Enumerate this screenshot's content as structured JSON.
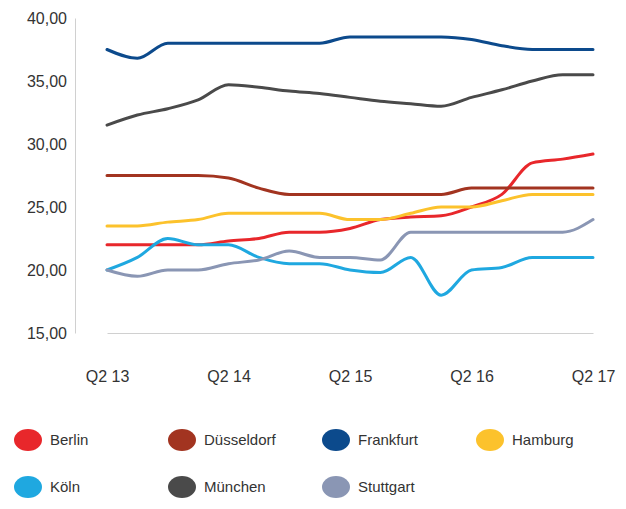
{
  "chart_data": {
    "type": "line",
    "categories": [
      "Q2 13",
      null,
      null,
      null,
      "Q2 14",
      null,
      null,
      null,
      "Q2 15",
      null,
      null,
      null,
      "Q2 16",
      null,
      null,
      null,
      "Q2 17"
    ],
    "series": [
      {
        "name": "Berlin",
        "color": "#e8272b",
        "values": [
          22,
          22,
          22,
          22,
          22.3,
          22.5,
          23,
          23,
          23.3,
          24,
          24.2,
          24.3,
          25,
          26,
          28.5,
          28.8,
          29.2
        ]
      },
      {
        "name": "Düsseldorf",
        "color": "#a23420",
        "values": [
          27.5,
          27.5,
          27.5,
          27.5,
          27.3,
          26.5,
          26,
          26,
          26,
          26,
          26,
          26,
          26.5,
          26.5,
          26.5,
          26.5,
          26.5
        ]
      },
      {
        "name": "Frankfurt",
        "color": "#0c4a8c",
        "values": [
          37.5,
          36.8,
          38,
          38,
          38,
          38,
          38,
          38,
          38.5,
          38.5,
          38.5,
          38.5,
          38.3,
          37.8,
          37.5,
          37.5,
          37.5
        ]
      },
      {
        "name": "Hamburg",
        "color": "#fcc22c",
        "values": [
          23.5,
          23.5,
          23.8,
          24,
          24.5,
          24.5,
          24.5,
          24.5,
          24,
          24,
          24.5,
          25,
          25,
          25.5,
          26,
          26,
          26
        ]
      },
      {
        "name": "Köln",
        "color": "#1fa8e0",
        "values": [
          20,
          21,
          22.5,
          22,
          22,
          21,
          20.5,
          20.5,
          20,
          19.8,
          21,
          18,
          20,
          20.2,
          21,
          21,
          21
        ]
      },
      {
        "name": "München",
        "color": "#4a4a4a",
        "values": [
          31.5,
          32.3,
          32.8,
          33.5,
          34.7,
          34.5,
          34.2,
          34,
          33.7,
          33.4,
          33.2,
          33,
          33.7,
          34.3,
          35,
          35.5,
          35.5
        ]
      },
      {
        "name": "Stuttgart",
        "color": "#8a96b4",
        "values": [
          20,
          19.5,
          20,
          20,
          20.5,
          20.8,
          21.5,
          21,
          21,
          20.8,
          23,
          23,
          23,
          23,
          23,
          23,
          24
        ]
      }
    ],
    "ylim": [
      15,
      40
    ],
    "yticks": [
      {
        "value": 15,
        "label": "15,00"
      },
      {
        "value": 20,
        "label": "20,00"
      },
      {
        "value": 25,
        "label": "25,00"
      },
      {
        "value": 30,
        "label": "30,00"
      },
      {
        "value": 35,
        "label": "35,00"
      },
      {
        "value": 40,
        "label": "40,00"
      }
    ],
    "grid": false,
    "legend": "bottom"
  }
}
